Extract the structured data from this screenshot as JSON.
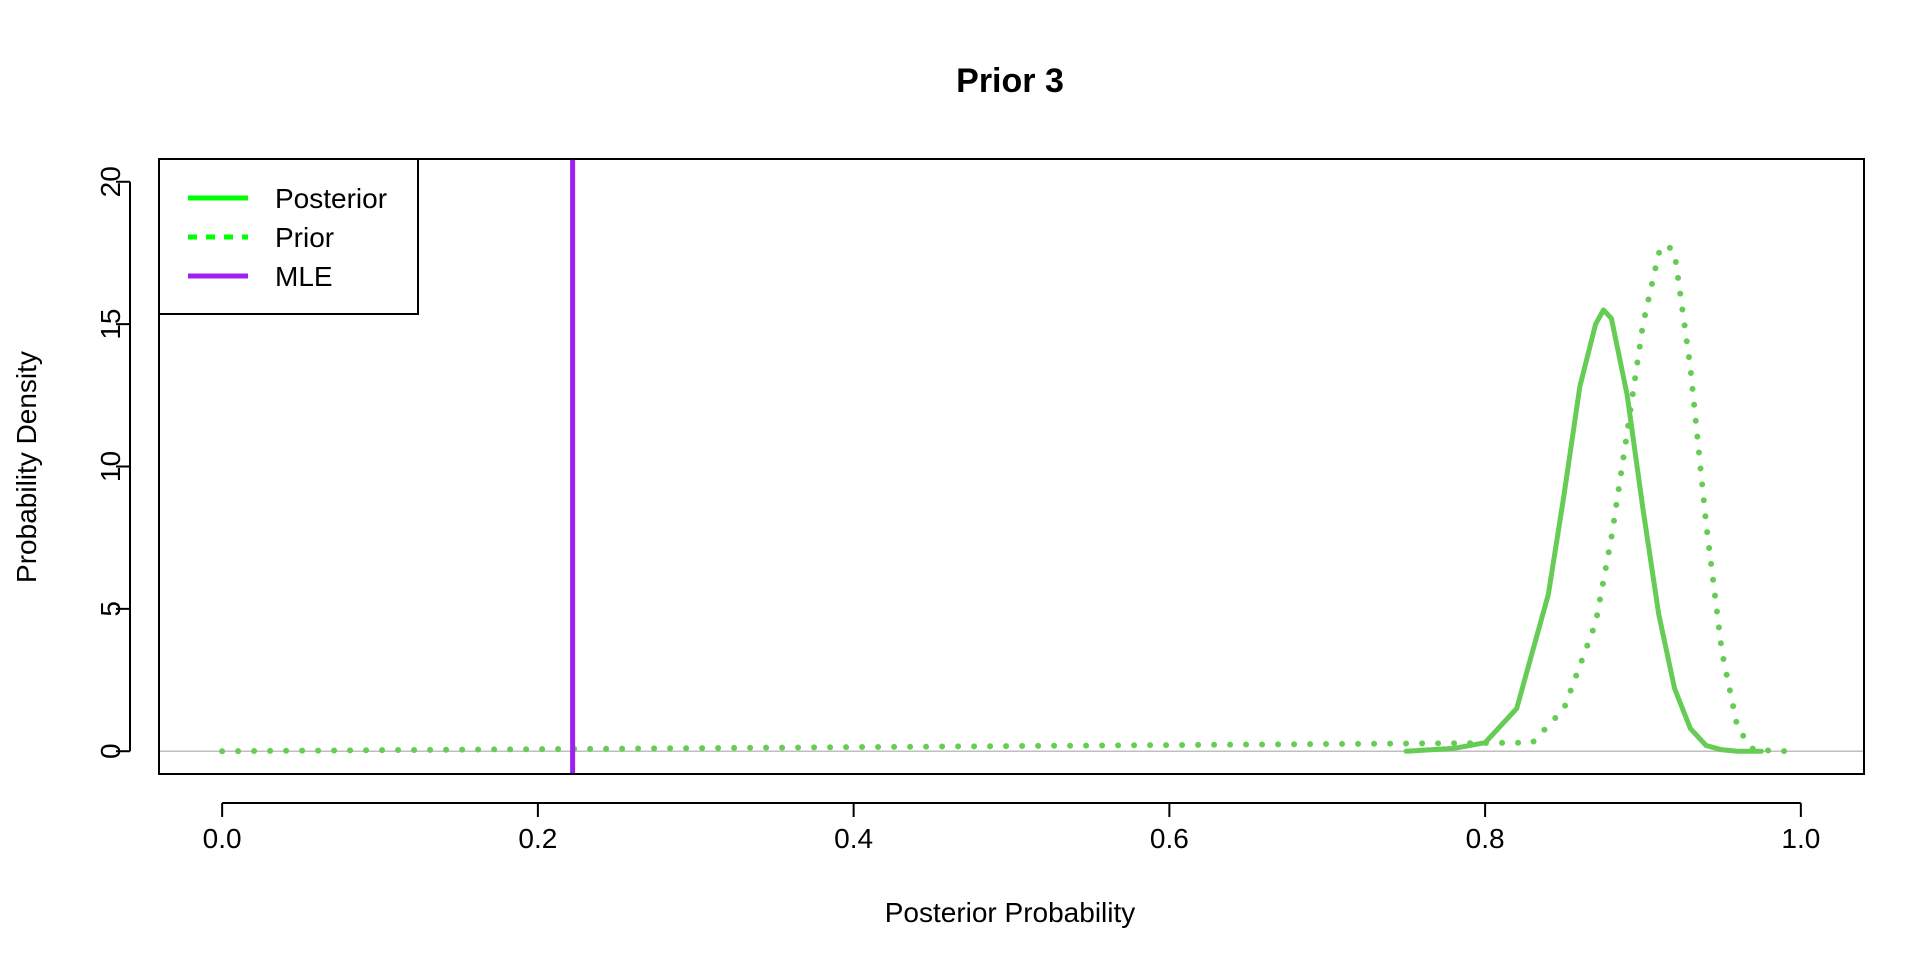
{
  "chart_data": {
    "type": "line",
    "title": "Prior 3",
    "xlabel": "Posterior Probability",
    "ylabel": "Probability Density",
    "xlim": [
      -0.04,
      1.04
    ],
    "ylim": [
      -0.8,
      20.8
    ],
    "x_ticks": [
      0.0,
      0.2,
      0.4,
      0.6,
      0.8,
      1.0
    ],
    "x_tick_labels": [
      "0.0",
      "0.2",
      "0.4",
      "0.6",
      "0.8",
      "1.0"
    ],
    "y_ticks": [
      0,
      5,
      10,
      15,
      20
    ],
    "y_tick_labels": [
      "0",
      "5",
      "10",
      "15",
      "20"
    ],
    "grid": false,
    "baseline": 0,
    "legend": {
      "position": "top-left",
      "entries": [
        {
          "label": "Posterior",
          "style": "solid",
          "color": "#00ff00"
        },
        {
          "label": "Prior",
          "style": "dotted",
          "color": "#00ff00"
        },
        {
          "label": "MLE",
          "style": "solid",
          "color": "#a020f0"
        }
      ]
    },
    "series": [
      {
        "name": "Posterior",
        "style": "solid",
        "color": "#66cc55",
        "x": [
          0.75,
          0.78,
          0.8,
          0.82,
          0.84,
          0.85,
          0.86,
          0.87,
          0.875,
          0.88,
          0.89,
          0.9,
          0.91,
          0.92,
          0.93,
          0.94,
          0.95,
          0.96,
          0.975
        ],
        "y": [
          0.0,
          0.1,
          0.3,
          1.5,
          5.5,
          9.0,
          12.8,
          15.0,
          15.5,
          15.2,
          12.5,
          8.5,
          4.8,
          2.2,
          0.8,
          0.2,
          0.05,
          0.0,
          0.0
        ]
      },
      {
        "name": "Prior",
        "style": "dotted",
        "color": "#66cc55",
        "x": [
          0.0,
          0.83,
          0.85,
          0.87,
          0.88,
          0.89,
          0.9,
          0.91,
          0.915,
          0.92,
          0.93,
          0.94,
          0.95,
          0.96,
          0.97,
          0.99
        ],
        "y": [
          0.0,
          0.3,
          1.5,
          4.5,
          7.5,
          11.2,
          15.0,
          17.5,
          17.8,
          17.5,
          13.5,
          8.0,
          3.5,
          0.8,
          0.05,
          0.0
        ]
      }
    ],
    "vlines": [
      {
        "name": "MLE",
        "x": 0.222,
        "color": "#a020f0"
      }
    ]
  }
}
